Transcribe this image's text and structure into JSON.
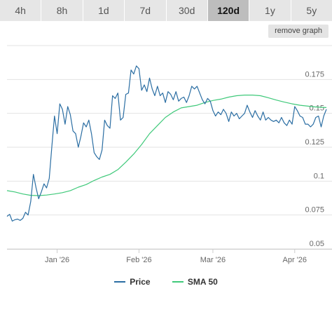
{
  "timeframe_tabs": [
    {
      "label": "4h",
      "active": false
    },
    {
      "label": "8h",
      "active": false
    },
    {
      "label": "1d",
      "active": false
    },
    {
      "label": "7d",
      "active": false
    },
    {
      "label": "30d",
      "active": false
    },
    {
      "label": "120d",
      "active": true
    },
    {
      "label": "1y",
      "active": false
    },
    {
      "label": "5y",
      "active": false
    }
  ],
  "remove_graph_label": "remove graph",
  "legend": [
    {
      "label": "Price",
      "color": "#2b6ea3"
    },
    {
      "label": "SMA 50",
      "color": "#3fc97a"
    }
  ],
  "chart_data": {
    "type": "line",
    "x_range": [
      "2025-12-13",
      "2026-04-13"
    ],
    "ylim": [
      0.05,
      0.2
    ],
    "y_ticks": [
      0.05,
      0.075,
      0.1,
      0.125,
      0.15,
      0.175
    ],
    "y_tick_labels": [
      "0.05",
      "0.075",
      "0.1",
      "0.125",
      "0.15",
      "0.175"
    ],
    "x_ticks": [
      {
        "date": "2026-01-01",
        "label": "Jan '26"
      },
      {
        "date": "2026-02-01",
        "label": "Feb '26"
      },
      {
        "date": "2026-03-01",
        "label": "Mar '26"
      },
      {
        "date": "2026-04-01",
        "label": "Apr '26"
      }
    ],
    "grid": "horizontal",
    "legend_position": "bottom",
    "series": [
      {
        "name": "Price",
        "color": "#2b6ea3",
        "points": [
          [
            "2025-12-13",
            0.074
          ],
          [
            "2025-12-14",
            0.0755
          ],
          [
            "2025-12-15",
            0.0705
          ],
          [
            "2025-12-16",
            0.0715
          ],
          [
            "2025-12-17",
            0.072
          ],
          [
            "2025-12-18",
            0.071
          ],
          [
            "2025-12-19",
            0.0725
          ],
          [
            "2025-12-20",
            0.077
          ],
          [
            "2025-12-21",
            0.075
          ],
          [
            "2025-12-22",
            0.085
          ],
          [
            "2025-12-23",
            0.105
          ],
          [
            "2025-12-24",
            0.095
          ],
          [
            "2025-12-25",
            0.087
          ],
          [
            "2025-12-26",
            0.092
          ],
          [
            "2025-12-27",
            0.098
          ],
          [
            "2025-12-28",
            0.095
          ],
          [
            "2025-12-29",
            0.102
          ],
          [
            "2025-12-30",
            0.126
          ],
          [
            "2025-12-31",
            0.148
          ],
          [
            "2026-01-01",
            0.135
          ],
          [
            "2026-01-02",
            0.157
          ],
          [
            "2026-01-03",
            0.153
          ],
          [
            "2026-01-04",
            0.142
          ],
          [
            "2026-01-05",
            0.155
          ],
          [
            "2026-01-06",
            0.149
          ],
          [
            "2026-01-07",
            0.137
          ],
          [
            "2026-01-08",
            0.135
          ],
          [
            "2026-01-09",
            0.125
          ],
          [
            "2026-01-10",
            0.133
          ],
          [
            "2026-01-11",
            0.143
          ],
          [
            "2026-01-12",
            0.14
          ],
          [
            "2026-01-13",
            0.145
          ],
          [
            "2026-01-14",
            0.135
          ],
          [
            "2026-01-15",
            0.121
          ],
          [
            "2026-01-16",
            0.118
          ],
          [
            "2026-01-17",
            0.116
          ],
          [
            "2026-01-18",
            0.123
          ],
          [
            "2026-01-19",
            0.145
          ],
          [
            "2026-01-20",
            0.141
          ],
          [
            "2026-01-21",
            0.139
          ],
          [
            "2026-01-22",
            0.163
          ],
          [
            "2026-01-23",
            0.161
          ],
          [
            "2026-01-24",
            0.165
          ],
          [
            "2026-01-25",
            0.145
          ],
          [
            "2026-01-26",
            0.147
          ],
          [
            "2026-01-27",
            0.164
          ],
          [
            "2026-01-28",
            0.165
          ],
          [
            "2026-01-29",
            0.182
          ],
          [
            "2026-01-30",
            0.179
          ],
          [
            "2026-01-31",
            0.185
          ],
          [
            "2026-02-01",
            0.183
          ],
          [
            "2026-02-02",
            0.167
          ],
          [
            "2026-02-03",
            0.171
          ],
          [
            "2026-02-04",
            0.166
          ],
          [
            "2026-02-05",
            0.176
          ],
          [
            "2026-02-06",
            0.168
          ],
          [
            "2026-02-07",
            0.163
          ],
          [
            "2026-02-08",
            0.17
          ],
          [
            "2026-02-09",
            0.163
          ],
          [
            "2026-02-10",
            0.165
          ],
          [
            "2026-02-11",
            0.158
          ],
          [
            "2026-02-12",
            0.166
          ],
          [
            "2026-02-13",
            0.164
          ],
          [
            "2026-02-14",
            0.16
          ],
          [
            "2026-02-15",
            0.166
          ],
          [
            "2026-02-16",
            0.159
          ],
          [
            "2026-02-17",
            0.161
          ],
          [
            "2026-02-18",
            0.162
          ],
          [
            "2026-02-19",
            0.158
          ],
          [
            "2026-02-20",
            0.163
          ],
          [
            "2026-02-21",
            0.17
          ],
          [
            "2026-02-22",
            0.168
          ],
          [
            "2026-02-23",
            0.17
          ],
          [
            "2026-02-24",
            0.165
          ],
          [
            "2026-02-25",
            0.16
          ],
          [
            "2026-02-26",
            0.157
          ],
          [
            "2026-02-27",
            0.161
          ],
          [
            "2026-02-28",
            0.159
          ],
          [
            "2026-03-01",
            0.152
          ],
          [
            "2026-03-02",
            0.148
          ],
          [
            "2026-03-03",
            0.151
          ],
          [
            "2026-03-04",
            0.149
          ],
          [
            "2026-03-05",
            0.153
          ],
          [
            "2026-03-06",
            0.15
          ],
          [
            "2026-03-07",
            0.144
          ],
          [
            "2026-03-08",
            0.151
          ],
          [
            "2026-03-09",
            0.148
          ],
          [
            "2026-03-10",
            0.15
          ],
          [
            "2026-03-11",
            0.146
          ],
          [
            "2026-03-12",
            0.148
          ],
          [
            "2026-03-13",
            0.15
          ],
          [
            "2026-03-14",
            0.156
          ],
          [
            "2026-03-15",
            0.151
          ],
          [
            "2026-03-16",
            0.147
          ],
          [
            "2026-03-17",
            0.152
          ],
          [
            "2026-03-18",
            0.148
          ],
          [
            "2026-03-19",
            0.145
          ],
          [
            "2026-03-20",
            0.151
          ],
          [
            "2026-03-21",
            0.145
          ],
          [
            "2026-03-22",
            0.147
          ],
          [
            "2026-03-23",
            0.145
          ],
          [
            "2026-03-24",
            0.144
          ],
          [
            "2026-03-25",
            0.145
          ],
          [
            "2026-03-26",
            0.143
          ],
          [
            "2026-03-27",
            0.147
          ],
          [
            "2026-03-28",
            0.143
          ],
          [
            "2026-03-29",
            0.141
          ],
          [
            "2026-03-30",
            0.145
          ],
          [
            "2026-03-31",
            0.142
          ],
          [
            "2026-04-01",
            0.155
          ],
          [
            "2026-04-02",
            0.152
          ],
          [
            "2026-04-03",
            0.148
          ],
          [
            "2026-04-04",
            0.147
          ],
          [
            "2026-04-05",
            0.142
          ],
          [
            "2026-04-06",
            0.142
          ],
          [
            "2026-04-07",
            0.14
          ],
          [
            "2026-04-08",
            0.142
          ],
          [
            "2026-04-09",
            0.147
          ],
          [
            "2026-04-10",
            0.148
          ],
          [
            "2026-04-11",
            0.14
          ],
          [
            "2026-04-12",
            0.148
          ],
          [
            "2026-04-13",
            0.153
          ]
        ]
      },
      {
        "name": "SMA 50",
        "color": "#3fc97a",
        "points": [
          [
            "2025-12-13",
            0.093
          ],
          [
            "2025-12-16",
            0.092
          ],
          [
            "2025-12-19",
            0.0905
          ],
          [
            "2025-12-22",
            0.0895
          ],
          [
            "2025-12-25",
            0.0893
          ],
          [
            "2025-12-28",
            0.0897
          ],
          [
            "2025-12-31",
            0.0905
          ],
          [
            "2026-01-03",
            0.0915
          ],
          [
            "2026-01-06",
            0.093
          ],
          [
            "2026-01-09",
            0.0955
          ],
          [
            "2026-01-12",
            0.0975
          ],
          [
            "2026-01-15",
            0.1005
          ],
          [
            "2026-01-18",
            0.103
          ],
          [
            "2026-01-21",
            0.105
          ],
          [
            "2026-01-24",
            0.1085
          ],
          [
            "2026-01-27",
            0.114
          ],
          [
            "2026-01-30",
            0.12
          ],
          [
            "2026-02-02",
            0.127
          ],
          [
            "2026-02-05",
            0.135
          ],
          [
            "2026-02-08",
            0.141
          ],
          [
            "2026-02-11",
            0.147
          ],
          [
            "2026-02-14",
            0.151
          ],
          [
            "2026-02-17",
            0.154
          ],
          [
            "2026-02-20",
            0.155
          ],
          [
            "2026-02-23",
            0.156
          ],
          [
            "2026-02-26",
            0.158
          ],
          [
            "2026-03-01",
            0.1595
          ],
          [
            "2026-03-04",
            0.1605
          ],
          [
            "2026-03-07",
            0.162
          ],
          [
            "2026-03-10",
            0.163
          ],
          [
            "2026-03-13",
            0.1635
          ],
          [
            "2026-03-16",
            0.1635
          ],
          [
            "2026-03-19",
            0.163
          ],
          [
            "2026-03-22",
            0.1615
          ],
          [
            "2026-03-25",
            0.1598
          ],
          [
            "2026-03-28",
            0.1583
          ],
          [
            "2026-03-31",
            0.157
          ],
          [
            "2026-04-03",
            0.156
          ],
          [
            "2026-04-06",
            0.1553
          ],
          [
            "2026-04-09",
            0.1547
          ],
          [
            "2026-04-13",
            0.1543
          ]
        ]
      }
    ]
  }
}
